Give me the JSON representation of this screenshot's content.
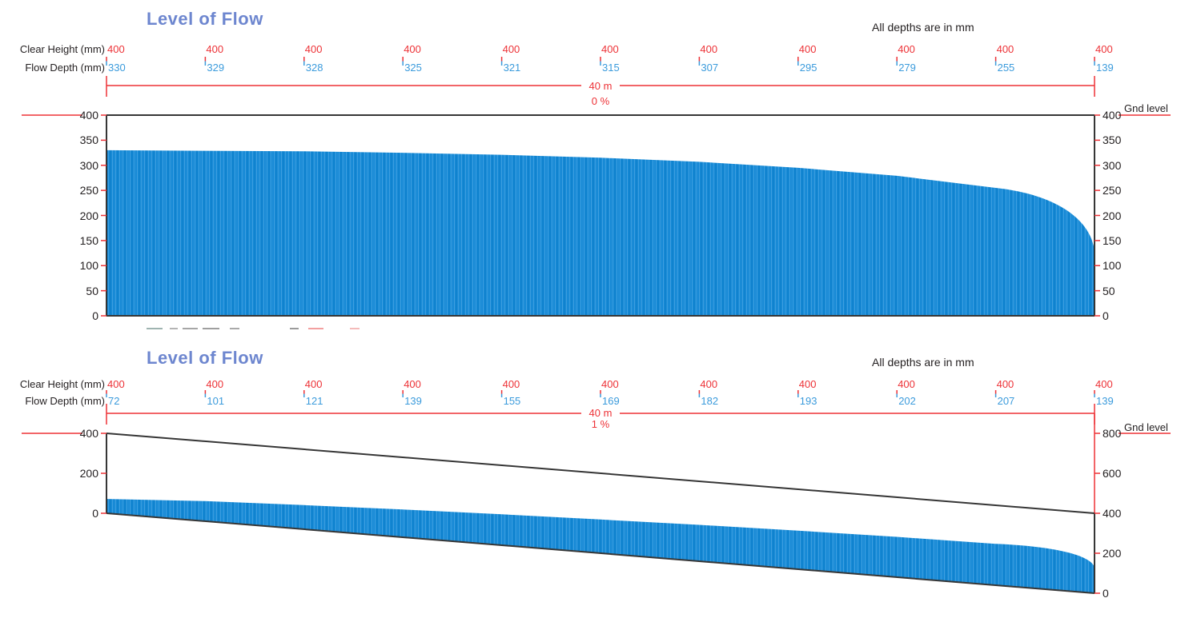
{
  "colors": {
    "accent_red": "#ed3237",
    "water_blue": "#1287d5",
    "water_stripe_light": "#46a4e2",
    "water_stripe_dark": "#0d7dc6",
    "value_blue": "#3b9bdc",
    "title_blue": "#6d86cf",
    "ink": "#231f20",
    "frame_black": "#363636"
  },
  "chart_data": [
    {
      "type": "area",
      "title": "Level of Flow",
      "note": "All depths are in mm",
      "row_label_clear_height": "Clear Height (mm)",
      "row_label_flow_depth": "Flow Depth (mm)",
      "length_label": "40 m",
      "slope_label": "0 %",
      "slope_percent": 0,
      "gnd_label": "Gnd level",
      "pipe_length_m": 40,
      "x_m": [
        0,
        4,
        8,
        12,
        16,
        20,
        24,
        28,
        32,
        36,
        40
      ],
      "clear_height_mm": [
        400,
        400,
        400,
        400,
        400,
        400,
        400,
        400,
        400,
        400,
        400
      ],
      "flow_depth_mm": [
        330,
        329,
        328,
        325,
        321,
        315,
        307,
        295,
        279,
        255,
        139
      ],
      "left_axis_ticks": [
        400,
        350,
        300,
        250,
        200,
        150,
        100,
        50,
        0
      ],
      "right_axis_ticks": [
        400,
        350,
        300,
        250,
        200,
        150,
        100,
        50,
        0
      ],
      "y_axis_range_mm": [
        0,
        400
      ],
      "legend_position": "none",
      "grid": false
    },
    {
      "type": "area",
      "title": "Level of Flow",
      "note": "All depths are in mm",
      "row_label_clear_height": "Clear Height (mm)",
      "row_label_flow_depth": "Flow Depth (mm)",
      "length_label": "40 m",
      "slope_label": "1 %",
      "slope_percent": 1,
      "gnd_label": "Gnd level",
      "pipe_length_m": 40,
      "x_m": [
        0,
        4,
        8,
        12,
        16,
        20,
        24,
        28,
        32,
        36,
        40
      ],
      "clear_height_mm": [
        400,
        400,
        400,
        400,
        400,
        400,
        400,
        400,
        400,
        400,
        400
      ],
      "flow_depth_mm": [
        72,
        101,
        121,
        139,
        155,
        169,
        182,
        193,
        202,
        207,
        139
      ],
      "left_axis_ticks": [
        400,
        200,
        0
      ],
      "right_axis_ticks": [
        800,
        600,
        400,
        200,
        0
      ],
      "y_axis_range_mm": [
        0,
        800
      ],
      "legend_position": "none",
      "grid": false
    }
  ]
}
